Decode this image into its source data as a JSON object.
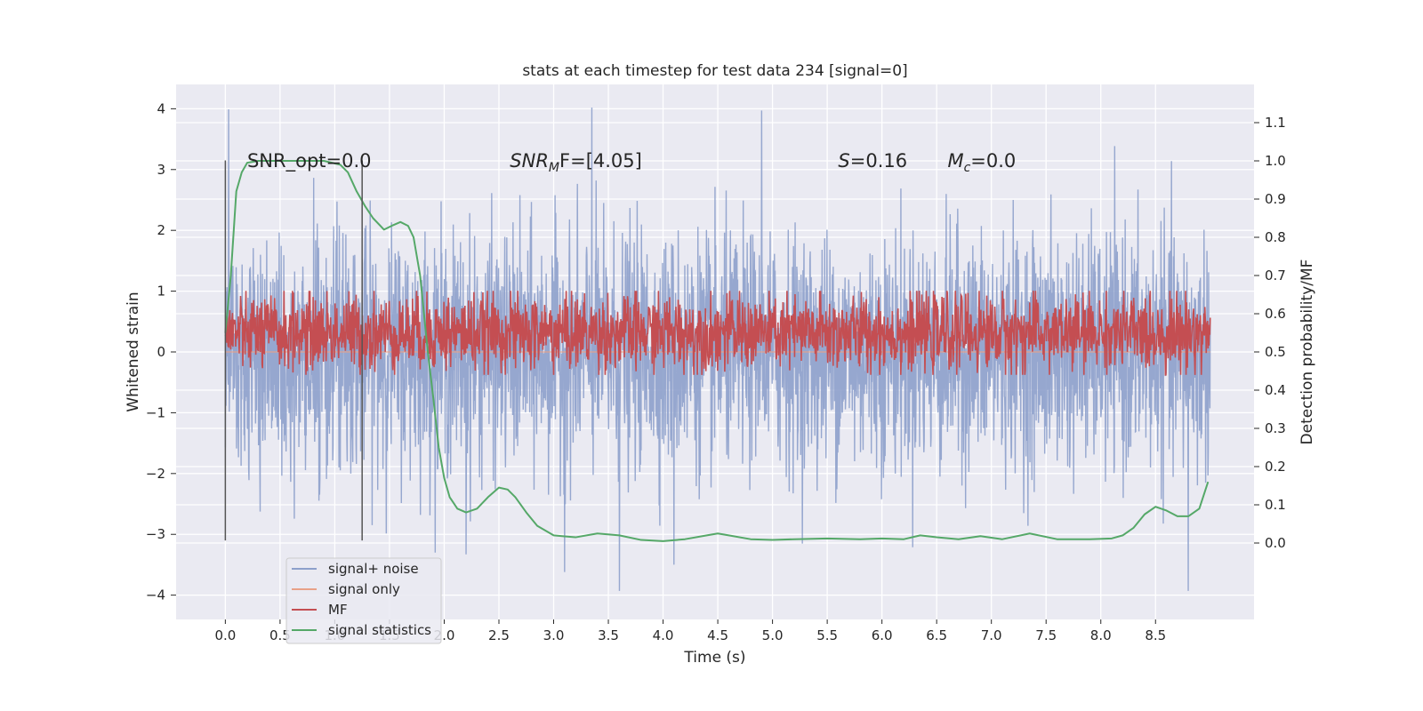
{
  "chart_data": {
    "type": "line",
    "title": "stats at each timestep for test data 234 [signal=0]",
    "xlabel": "Time (s)",
    "ylabel_left": "Whitened strain",
    "ylabel_right": "Detection probability/MF",
    "xlim": [
      -0.45,
      9.4
    ],
    "ylim_left": [
      -4.4,
      4.4
    ],
    "ylim_right": [
      -0.2,
      1.2
    ],
    "x_ticks": [
      0.0,
      0.5,
      1.0,
      1.5,
      2.0,
      2.5,
      3.0,
      3.5,
      4.0,
      4.5,
      5.0,
      5.5,
      6.0,
      6.5,
      7.0,
      7.5,
      8.0,
      8.5
    ],
    "x_tick_labels": [
      "0.0",
      "0.5",
      "1.0",
      "1.5",
      "2.0",
      "2.5",
      "3.0",
      "3.5",
      "4.0",
      "4.5",
      "5.0",
      "5.5",
      "6.0",
      "6.5",
      "7.0",
      "7.5",
      "8.0",
      "8.5"
    ],
    "y_left_ticks": [
      4,
      3,
      2,
      1,
      0,
      -1,
      -2,
      -3,
      -4
    ],
    "y_left_tick_labels": [
      "4",
      "3",
      "2",
      "1",
      "0",
      "−1",
      "−2",
      "−3",
      "−4"
    ],
    "y_right_ticks": [
      1.1,
      1.0,
      0.9,
      0.8,
      0.7,
      0.6,
      0.5,
      0.4,
      0.3,
      0.2,
      0.1,
      0.0
    ],
    "y_right_tick_labels": [
      "1.1",
      "1.0",
      "0.9",
      "0.8",
      "0.7",
      "0.6",
      "0.5",
      "0.4",
      "0.3",
      "0.2",
      "0.1",
      "0.0"
    ],
    "grid": true,
    "legend_position": "lower-left",
    "annotations": [
      {
        "text": "SNR_opt=0.0",
        "x": 0.2,
        "y_right": 1.0
      },
      {
        "base": "SNR",
        "sub": "M",
        "rest": "F=[4.05]",
        "x": 2.6,
        "y_right": 1.0
      },
      {
        "base": "S",
        "sub": "",
        "rest": "=0.16",
        "x": 5.6,
        "y_right": 1.0
      },
      {
        "base": "M",
        "sub": "c",
        "rest": "=0.0",
        "x": 6.6,
        "y_right": 1.0
      }
    ],
    "vertical_markers": [
      {
        "x": 0.0,
        "y_range": [
          -3.1,
          3.15
        ]
      },
      {
        "x": 1.25,
        "y_range": [
          -3.1,
          3.15
        ]
      }
    ],
    "series": [
      {
        "name": "signal+ noise",
        "axis": "left",
        "color": "#8da0cb",
        "kind": "noise",
        "x_range": [
          0.0,
          9.0
        ],
        "envelope_typical": 1.9,
        "peaks": [
          [
            0.03,
            3.99
          ],
          [
            3.35,
            4.02
          ],
          [
            4.9,
            3.97
          ],
          [
            3.1,
            -3.62
          ],
          [
            3.6,
            -3.93
          ],
          [
            8.8,
            -3.93
          ],
          [
            4.1,
            -3.5
          ],
          [
            2.2,
            -3.33
          ]
        ]
      },
      {
        "name": "signal only",
        "axis": "left",
        "color": "#e8a188",
        "kind": "flat",
        "x": [
          0.0,
          9.0
        ],
        "y": [
          0.0,
          0.0
        ]
      },
      {
        "name": "MF",
        "axis": "right",
        "color": "#c44e52",
        "kind": "noise_band",
        "x_range": [
          0.0,
          9.0
        ],
        "band": [
          0.5,
          0.6
        ],
        "band_extremes": [
          0.44,
          0.66
        ]
      },
      {
        "name": "signal statistics",
        "axis": "right",
        "color": "#55a868",
        "kind": "line",
        "x": [
          0.0,
          0.05,
          0.1,
          0.15,
          0.2,
          0.3,
          0.5,
          0.7,
          0.9,
          1.05,
          1.12,
          1.2,
          1.28,
          1.35,
          1.45,
          1.52,
          1.6,
          1.67,
          1.72,
          1.78,
          1.85,
          1.9,
          1.95,
          2.0,
          2.05,
          2.12,
          2.2,
          2.3,
          2.4,
          2.5,
          2.58,
          2.65,
          2.75,
          2.85,
          3.0,
          3.2,
          3.4,
          3.6,
          3.8,
          4.0,
          4.2,
          4.4,
          4.5,
          4.6,
          4.8,
          5.0,
          5.2,
          5.5,
          5.8,
          6.0,
          6.2,
          6.35,
          6.5,
          6.7,
          6.9,
          7.1,
          7.35,
          7.6,
          7.9,
          8.1,
          8.2,
          8.3,
          8.4,
          8.5,
          8.6,
          8.7,
          8.8,
          8.9,
          8.98
        ],
        "y": [
          0.55,
          0.7,
          0.92,
          0.97,
          0.995,
          1.0,
          1.0,
          1.0,
          1.0,
          0.99,
          0.97,
          0.92,
          0.88,
          0.85,
          0.82,
          0.83,
          0.84,
          0.83,
          0.8,
          0.7,
          0.5,
          0.38,
          0.25,
          0.17,
          0.12,
          0.09,
          0.08,
          0.09,
          0.12,
          0.145,
          0.14,
          0.12,
          0.08,
          0.045,
          0.02,
          0.015,
          0.025,
          0.02,
          0.008,
          0.005,
          0.01,
          0.02,
          0.025,
          0.02,
          0.01,
          0.008,
          0.01,
          0.012,
          0.01,
          0.012,
          0.01,
          0.02,
          0.015,
          0.01,
          0.018,
          0.01,
          0.025,
          0.01,
          0.01,
          0.012,
          0.02,
          0.04,
          0.075,
          0.095,
          0.085,
          0.07,
          0.07,
          0.09,
          0.16
        ]
      }
    ]
  }
}
